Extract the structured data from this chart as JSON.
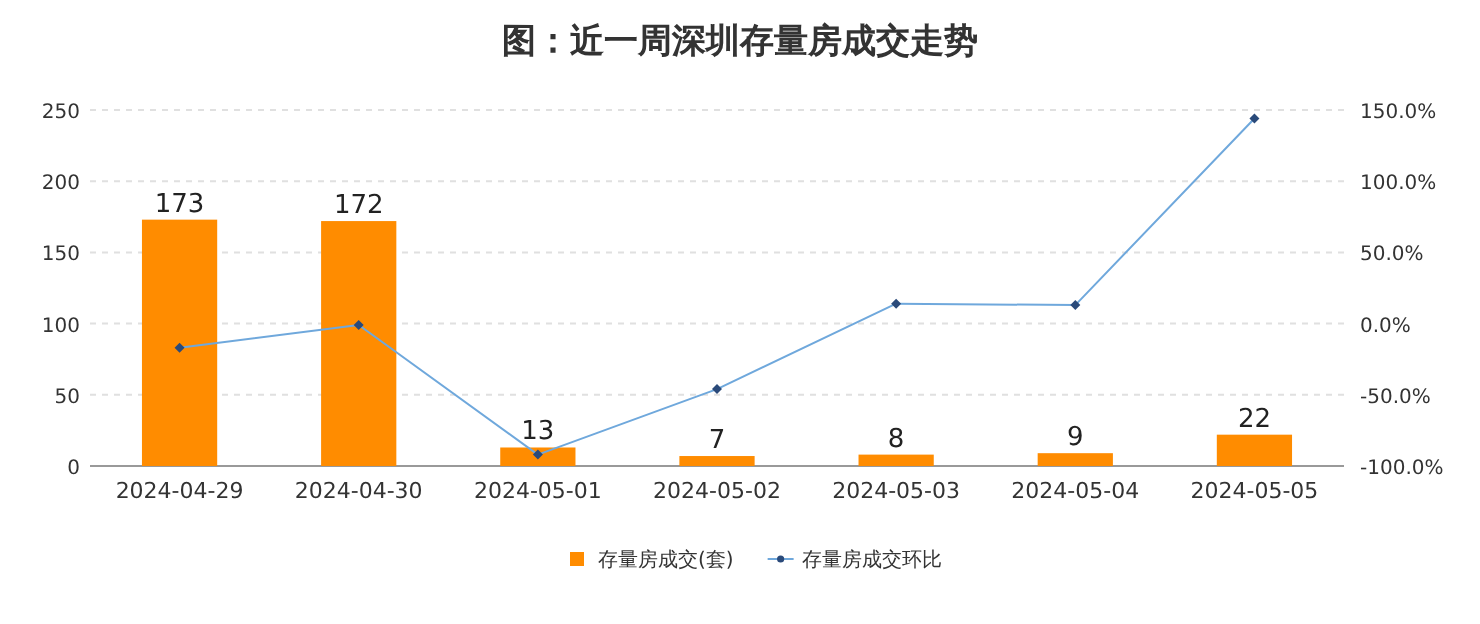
{
  "chart_data": {
    "type": "bar",
    "title": "图：近一周深圳存量房成交走势",
    "categories": [
      "2024-04-29",
      "2024-04-30",
      "2024-05-01",
      "2024-05-02",
      "2024-05-03",
      "2024-05-04",
      "2024-05-05"
    ],
    "series": [
      {
        "name": "存量房成交(套)",
        "color": "#ff8c00",
        "values": [
          173,
          172,
          13,
          7,
          8,
          9,
          22
        ],
        "value_labels": [
          "173",
          "172",
          "13",
          "7",
          "8",
          "9",
          "22"
        ]
      },
      {
        "name": "存量房成交环比",
        "type": "line",
        "axis": "y2",
        "color": "#6fa8dc",
        "marker": "diamond",
        "values": [
          -17,
          -1,
          -92,
          -46,
          14,
          13,
          144
        ]
      }
    ],
    "ylim": [
      0,
      250
    ],
    "yticks": [
      0,
      50,
      100,
      150,
      200,
      250
    ],
    "y2lim": [
      -100,
      150
    ],
    "y2ticks": [
      {
        "value": -100,
        "label": "-100.0%"
      },
      {
        "value": -50,
        "label": "-50.0%"
      },
      {
        "value": 0,
        "label": "0.0%"
      },
      {
        "value": 50,
        "label": "50.0%"
      },
      {
        "value": 100,
        "label": "100.0%"
      },
      {
        "value": 150,
        "label": "150.0%"
      }
    ],
    "grid": "y",
    "legend": "bottom"
  }
}
